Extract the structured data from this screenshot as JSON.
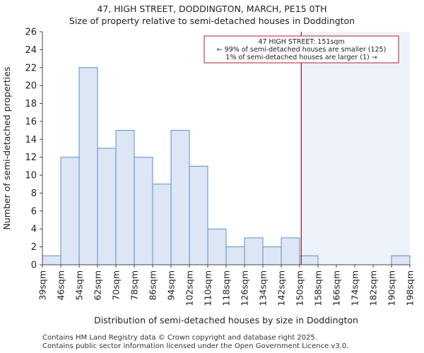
{
  "header": {
    "title": "47, HIGH STREET, DODDINGTON, MARCH, PE15 0TH",
    "subtitle": "Size of property relative to semi-detached houses in Doddington"
  },
  "footer": {
    "line1": "Contains HM Land Registry data © Crown copyright and database right 2025.",
    "line2": "Contains public sector information licensed under the Open Government Licence v3.0."
  },
  "chart_data": {
    "type": "bar",
    "title": "47, HIGH STREET, DODDINGTON, MARCH, PE15 0TH",
    "subtitle": "Size of property relative to semi-detached houses in Doddington",
    "xlabel": "Distribution of semi-detached houses by size in Doddington",
    "ylabel": "Number of semi-detached properties",
    "bin_edges": [
      39,
      46,
      54,
      62,
      70,
      78,
      86,
      94,
      102,
      110,
      118,
      126,
      134,
      142,
      150,
      158,
      166,
      174,
      182,
      190,
      198
    ],
    "x_tick_labels": [
      "39sqm",
      "46sqm",
      "54sqm",
      "62sqm",
      "70sqm",
      "78sqm",
      "86sqm",
      "94sqm",
      "102sqm",
      "110sqm",
      "118sqm",
      "126sqm",
      "134sqm",
      "142sqm",
      "150sqm",
      "158sqm",
      "166sqm",
      "174sqm",
      "182sqm",
      "190sqm",
      "198sqm"
    ],
    "values": [
      1,
      12,
      22,
      13,
      15,
      12,
      9,
      15,
      11,
      4,
      2,
      3,
      2,
      3,
      1,
      0,
      0,
      0,
      0,
      1
    ],
    "ylim": [
      0,
      26
    ],
    "yticks": [
      0,
      2,
      4,
      6,
      8,
      10,
      12,
      14,
      16,
      18,
      20,
      22,
      24,
      26
    ],
    "property_size": 151,
    "annotation": {
      "line1": "47 HIGH STREET: 151sqm",
      "line2": "← 99% of semi-detached houses are smaller (125)",
      "line3": "1% of semi-detached houses are larger (1) →"
    },
    "colors": {
      "bar_fill": "#dce6f5",
      "bar_stroke": "#5b8ec4",
      "marker_line": "#8b1a1a",
      "highlight_region": "#eef2fb",
      "annotation_border": "#b22222",
      "axis": "#444444"
    }
  }
}
